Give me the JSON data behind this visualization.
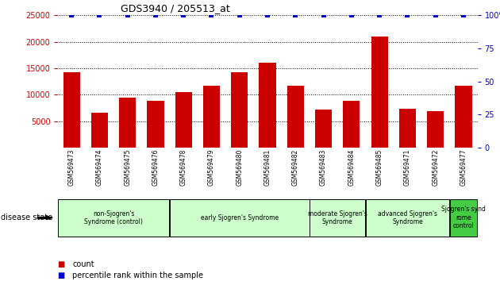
{
  "title": "GDS3940 / 205513_at",
  "samples": [
    "GSM569473",
    "GSM569474",
    "GSM569475",
    "GSM569476",
    "GSM569478",
    "GSM569479",
    "GSM569480",
    "GSM569481",
    "GSM569482",
    "GSM569483",
    "GSM569484",
    "GSM569485",
    "GSM569471",
    "GSM569472",
    "GSM569477"
  ],
  "counts": [
    14200,
    6600,
    9500,
    8800,
    10500,
    11700,
    14200,
    16000,
    11700,
    7200,
    8800,
    21000,
    7400,
    6900,
    11700
  ],
  "percentiles": [
    100,
    100,
    100,
    100,
    100,
    100,
    100,
    100,
    100,
    100,
    100,
    100,
    100,
    100,
    100
  ],
  "bar_color": "#cc0000",
  "percentile_color": "#0000cc",
  "ylim_left": [
    0,
    25000
  ],
  "ylim_right": [
    0,
    100
  ],
  "yticks_left": [
    5000,
    10000,
    15000,
    20000,
    25000
  ],
  "yticks_right": [
    0,
    25,
    50,
    75,
    100
  ],
  "left_tick_color": "#cc0000",
  "right_tick_color": "#0000cc",
  "group_labels": [
    "non-Sjogren's\nSyndrome (control)",
    "early Sjogren's Syndrome",
    "moderate Sjogren's\nSyndrome",
    "advanced Sjogren's\nSyndrome",
    "Sjogren's synd\nrome\ncontrol"
  ],
  "group_starts": [
    0,
    4,
    9,
    11,
    14
  ],
  "group_ends": [
    3,
    8,
    10,
    13,
    14
  ],
  "group_colors": [
    "#ccffcc",
    "#ccffcc",
    "#ccffcc",
    "#ccffcc",
    "#44cc44"
  ],
  "sample_bg_color": "#d0d0d0",
  "sample_separator_color": "#ffffff"
}
